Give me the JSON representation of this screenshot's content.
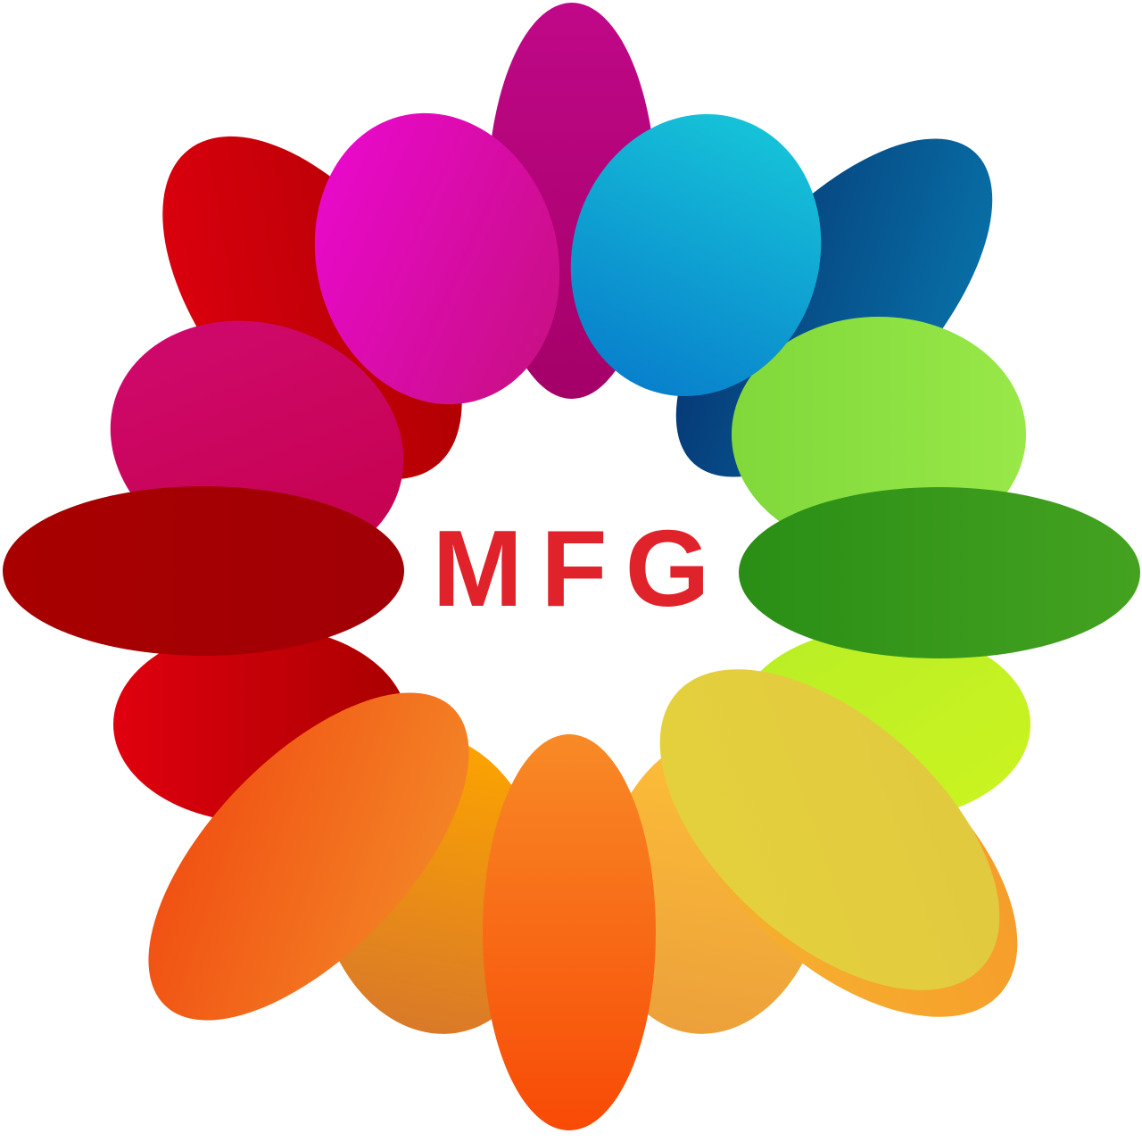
{
  "logo": {
    "text": "MFG",
    "text_color": "#e0232b",
    "background": "#ffffff",
    "petal_colors": [
      "#b3087e",
      "#e01096",
      "#14b8d8",
      "#0a5e99",
      "#cc0012",
      "#c80a5e",
      "#88e040",
      "#a80006",
      "#3a9a1c",
      "#c4f020",
      "#c20008",
      "#f28a26",
      "#f5a412",
      "#f7841e",
      "#fdb93e",
      "#f7a330",
      "#e4d040"
    ]
  }
}
